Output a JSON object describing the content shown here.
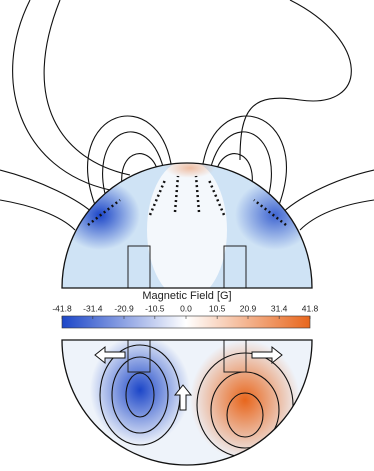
{
  "chart_data": {
    "type": "colorbar",
    "title": "Magnetic Field [G]",
    "xlim": [
      -41.8,
      41.8
    ],
    "xticks": [
      -41.8,
      -31.4,
      -20.9,
      -10.5,
      {
        "value": 0,
        "label": "0.0"
      },
      10.5,
      20.9,
      31.4,
      41.8
    ],
    "colors": [
      "#1c46c8",
      "#ffffff",
      "#e8661c"
    ]
  }
}
